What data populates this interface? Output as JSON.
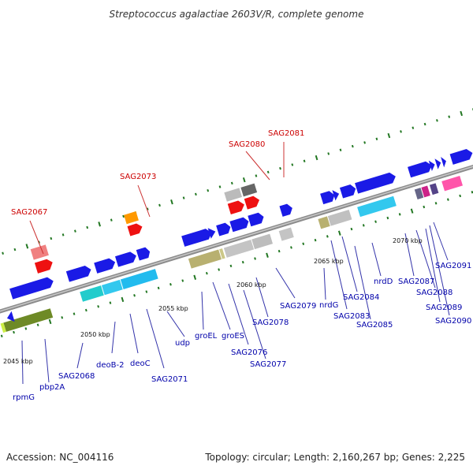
{
  "title": "Streptococcus agalactiae 2603V/R, complete genome",
  "footer": {
    "accession": "Accession: NC_004116",
    "stats": "Topology: circular; Length: 2,160,267 bp; Genes: 2,225"
  },
  "colors": {
    "axis": "#8c8c8c",
    "tick": "#227722",
    "gene_label": "#0000aa",
    "highlight_label": "#cc0000",
    "leader_line": "#3333aa",
    "highlight_leader": "#cc3333",
    "gene_arrow": "#1a1ae6"
  },
  "kbp_marks": [
    {
      "label": "2045 kbp"
    },
    {
      "label": "2050 kbp"
    },
    {
      "label": "2055 kbp"
    },
    {
      "label": "2060 kbp"
    },
    {
      "label": "2065 kbp"
    },
    {
      "label": "2070 kbp"
    }
  ],
  "gene_labels": [
    {
      "label": "rpmG"
    },
    {
      "label": "pbp2A"
    },
    {
      "label": "SAG2068"
    },
    {
      "label": "deoB-2"
    },
    {
      "label": "deoC"
    },
    {
      "label": "SAG2071"
    },
    {
      "label": "udp"
    },
    {
      "label": "groEL"
    },
    {
      "label": "groES"
    },
    {
      "label": "SAG2076"
    },
    {
      "label": "SAG2077"
    },
    {
      "label": "SAG2078"
    },
    {
      "label": "SAG2079"
    },
    {
      "label": "nrdG"
    },
    {
      "label": "SAG2083"
    },
    {
      "label": "SAG2084"
    },
    {
      "label": "SAG2085"
    },
    {
      "label": "nrdD"
    },
    {
      "label": "SAG2087"
    },
    {
      "label": "SAG2088"
    },
    {
      "label": "SAG2089"
    },
    {
      "label": "SAG2090"
    },
    {
      "label": "SAG2091"
    }
  ],
  "highlight_labels": [
    {
      "label": "SAG2067"
    },
    {
      "label": "SAG2073"
    },
    {
      "label": "SAG2080"
    },
    {
      "label": "SAG2081"
    }
  ]
}
